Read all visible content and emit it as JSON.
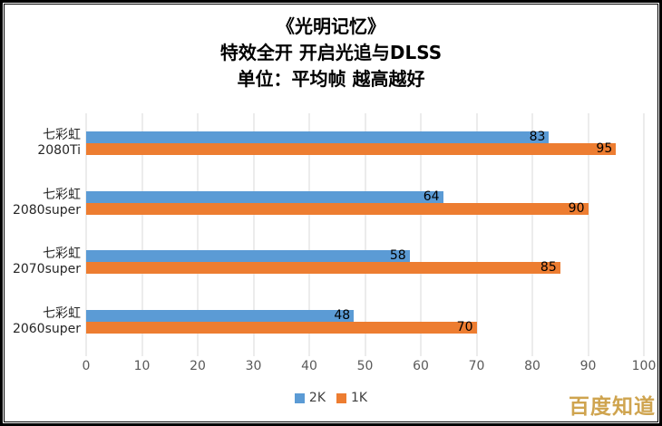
{
  "title": {
    "line1": "《光明记忆》",
    "line2": "特效全开 开启光追与DLSS",
    "line3": "单位：平均帧 越高越好"
  },
  "chart_data": {
    "type": "bar",
    "orientation": "horizontal",
    "title": "《光明记忆》 特效全开 开启光追与DLSS 单位：平均帧 越高越好",
    "categories": [
      {
        "line1": "七彩虹",
        "line2": "2080Ti"
      },
      {
        "line1": "七彩虹",
        "line2": "2080super"
      },
      {
        "line1": "七彩虹",
        "line2": "2070super"
      },
      {
        "line1": "七彩虹",
        "line2": "2060super"
      }
    ],
    "series": [
      {
        "name": "2K",
        "color": "#5B9BD5",
        "values": [
          83,
          64,
          58,
          48
        ]
      },
      {
        "name": "1K",
        "color": "#ED7D31",
        "values": [
          95,
          90,
          85,
          70
        ]
      }
    ],
    "xlim": [
      0,
      100
    ],
    "xstep": 10,
    "grid": "vertical-only",
    "gridline_color": "#d9d9d9",
    "legend_position": "bottom-center",
    "value_labels": "inside-end"
  },
  "watermark": "百度知道",
  "colors": {
    "series_2k": "#5B9BD5",
    "series_1k": "#ED7D31",
    "axis_text": "#595959",
    "watermark_gold": "#cfa44f",
    "border": "#000000"
  }
}
